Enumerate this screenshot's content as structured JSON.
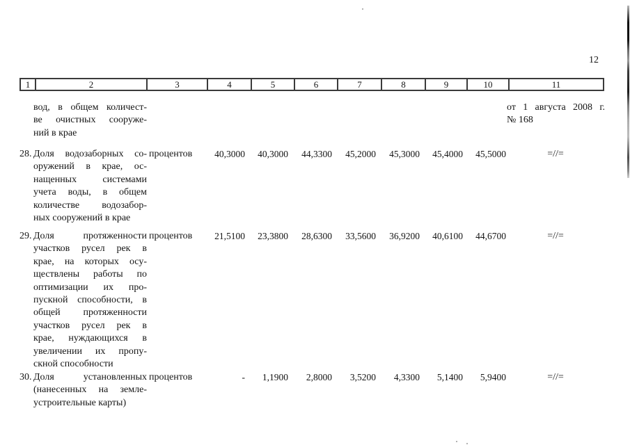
{
  "page": {
    "number": "12"
  },
  "decree_note": {
    "line1": "от 1 августа 2008 г.",
    "line2": "№ 168"
  },
  "table": {
    "header_columns": [
      "1",
      "2",
      "3",
      "4",
      "5",
      "6",
      "7",
      "8",
      "9",
      "10",
      "11"
    ],
    "continuation": {
      "name_lines": [
        "вод, в общем количест-",
        "ве очистных сооруже-",
        "ний в крае"
      ]
    },
    "rows": [
      {
        "num": "28.",
        "name_lines": [
          "Доля водозаборных со-",
          "оружений в крае, ос-",
          "нащенных системами",
          "учета воды, в общем",
          "количестве водозабор-",
          "ных сооружений в крае"
        ],
        "unit": "процентов",
        "values": [
          "40,3000",
          "40,3000",
          "44,3300",
          "45,2000",
          "45,3000",
          "45,4000",
          "45,5000"
        ],
        "repeat_mark": "=//="
      },
      {
        "num": "29.",
        "name_lines": [
          "Доля протяженности",
          "участков русел рек в",
          "крае, на которых осу-",
          "ществлены работы по",
          "оптимизации их про-",
          "пускной способности, в",
          "общей протяженности",
          "участков русел рек в",
          "крае, нуждающихся в",
          "увеличении их пропу-",
          "скной способности"
        ],
        "unit": "процентов",
        "values": [
          "21,5100",
          "23,3800",
          "28,6300",
          "33,5600",
          "36,9200",
          "40,6100",
          "44,6700"
        ],
        "repeat_mark": "=//="
      },
      {
        "num": "30.",
        "name_lines": [
          "Доля установленных",
          "(нанесенных на земле-",
          "устроительные карты)"
        ],
        "unit": "процентов",
        "values": [
          "-",
          "1,1900",
          "2,8000",
          "3,5200",
          "4,3300",
          "5,1400",
          "5,9400"
        ],
        "repeat_mark": "=//="
      }
    ]
  }
}
